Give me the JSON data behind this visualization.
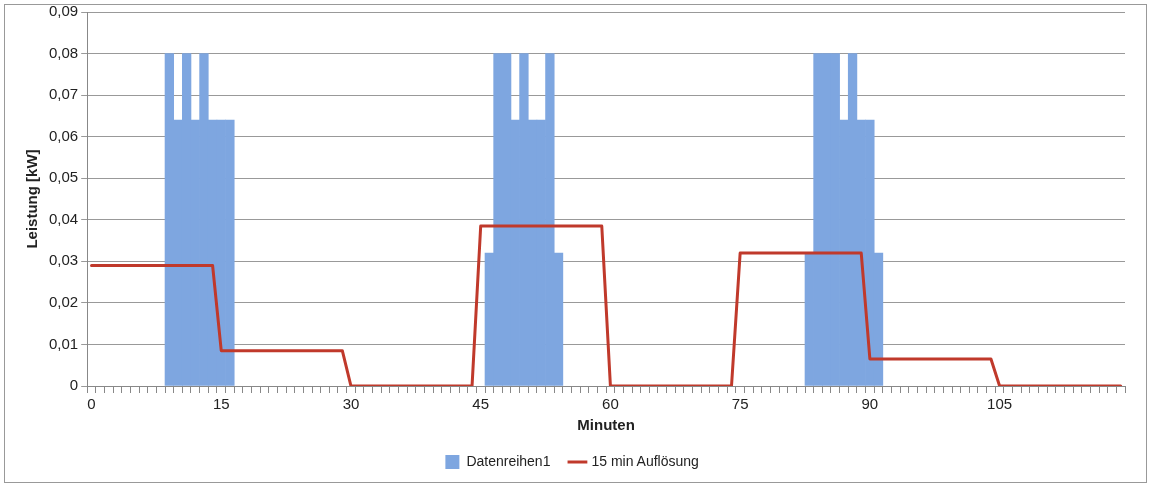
{
  "chart_data": {
    "type": "bar",
    "xlabel": "Minuten",
    "ylabel": "Leistung [kW]",
    "categories": [
      "0",
      null,
      null,
      null,
      null,
      null,
      null,
      null,
      null,
      null,
      null,
      null,
      null,
      null,
      null,
      "15",
      null,
      null,
      null,
      null,
      null,
      null,
      null,
      null,
      null,
      null,
      null,
      null,
      null,
      null,
      "30",
      null,
      null,
      null,
      null,
      null,
      null,
      null,
      null,
      null,
      null,
      null,
      null,
      null,
      null,
      "45",
      null,
      null,
      null,
      null,
      null,
      null,
      null,
      null,
      null,
      null,
      null,
      null,
      null,
      null,
      "60",
      null,
      null,
      null,
      null,
      null,
      null,
      null,
      null,
      null,
      null,
      null,
      null,
      null,
      null,
      "75",
      null,
      null,
      null,
      null,
      null,
      null,
      null,
      null,
      null,
      null,
      null,
      null,
      null,
      null,
      "90",
      null,
      null,
      null,
      null,
      null,
      null,
      null,
      null,
      null,
      null,
      null,
      null,
      null,
      null,
      "105",
      null,
      null,
      null,
      null,
      null,
      null,
      null,
      null,
      null,
      null,
      null,
      null,
      null,
      null
    ],
    "series": [
      {
        "name": "Datenreihen1",
        "color": "#7ea6e0",
        "values": [
          null,
          null,
          null,
          null,
          null,
          null,
          null,
          null,
          null,
          0.08,
          0.064,
          0.08,
          0.064,
          0.08,
          0.064,
          0.064,
          0.064,
          null,
          null,
          null,
          null,
          null,
          null,
          null,
          null,
          null,
          null,
          null,
          null,
          null,
          null,
          null,
          null,
          null,
          null,
          null,
          null,
          null,
          null,
          null,
          null,
          null,
          null,
          null,
          null,
          null,
          0.032,
          0.08,
          0.08,
          0.064,
          0.08,
          0.064,
          0.064,
          0.08,
          0.032,
          null,
          null,
          null,
          null,
          null,
          null,
          null,
          null,
          null,
          null,
          null,
          null,
          null,
          null,
          null,
          null,
          null,
          null,
          null,
          null,
          null,
          null,
          null,
          null,
          null,
          null,
          null,
          null,
          0.032,
          0.08,
          0.08,
          0.08,
          0.064,
          0.08,
          0.064,
          0.064,
          0.032,
          null,
          null,
          null,
          null,
          null,
          null,
          null,
          null,
          null,
          null,
          null,
          null,
          null,
          null,
          null,
          null,
          null,
          null,
          null,
          null,
          null,
          null,
          null,
          null,
          null,
          null,
          null,
          null
        ]
      },
      {
        "name": "15 min Auflösung",
        "type": "line",
        "color": "#c0392b",
        "values": [
          0.029,
          0.029,
          0.029,
          0.029,
          0.029,
          0.029,
          0.029,
          0.029,
          0.029,
          0.029,
          0.029,
          0.029,
          0.029,
          0.029,
          0.029,
          0.0085,
          0.0085,
          0.0085,
          0.0085,
          0.0085,
          0.0085,
          0.0085,
          0.0085,
          0.0085,
          0.0085,
          0.0085,
          0.0085,
          0.0085,
          0.0085,
          0.0085,
          0,
          0,
          0,
          0,
          0,
          0,
          0,
          0,
          0,
          0,
          0,
          0,
          0,
          0,
          0,
          0.0385,
          0.0385,
          0.0385,
          0.0385,
          0.0385,
          0.0385,
          0.0385,
          0.0385,
          0.0385,
          0.0385,
          0.0385,
          0.0385,
          0.0385,
          0.0385,
          0.0385,
          0,
          0,
          0,
          0,
          0,
          0,
          0,
          0,
          0,
          0,
          0,
          0,
          0,
          0,
          0,
          0.032,
          0.032,
          0.032,
          0.032,
          0.032,
          0.032,
          0.032,
          0.032,
          0.032,
          0.032,
          0.032,
          0.032,
          0.032,
          0.032,
          0.032,
          0.0065,
          0.0065,
          0.0065,
          0.0065,
          0.0065,
          0.0065,
          0.0065,
          0.0065,
          0.0065,
          0.0065,
          0.0065,
          0.0065,
          0.0065,
          0.0065,
          0.0065,
          0,
          0,
          0,
          0,
          0,
          0,
          0,
          0,
          0,
          0,
          0,
          0,
          0,
          0,
          0
        ]
      }
    ],
    "ylim": [
      0,
      0.09
    ],
    "yticks": [
      0,
      {
        "value": 0.01,
        "label": "0,01"
      },
      {
        "value": 0.02,
        "label": "0,02"
      },
      {
        "value": 0.03,
        "label": "0,03"
      },
      {
        "value": 0.04,
        "label": "0,04"
      },
      {
        "value": 0.05,
        "label": "0,05"
      },
      {
        "value": 0.06,
        "label": "0,06"
      },
      {
        "value": 0.07,
        "label": "0,07"
      },
      {
        "value": 0.08,
        "label": "0,08"
      },
      {
        "value": 0.09,
        "label": "0,09"
      }
    ],
    "grid": "y",
    "legend": "bottom",
    "marker": "none",
    "line_style": "solid"
  }
}
